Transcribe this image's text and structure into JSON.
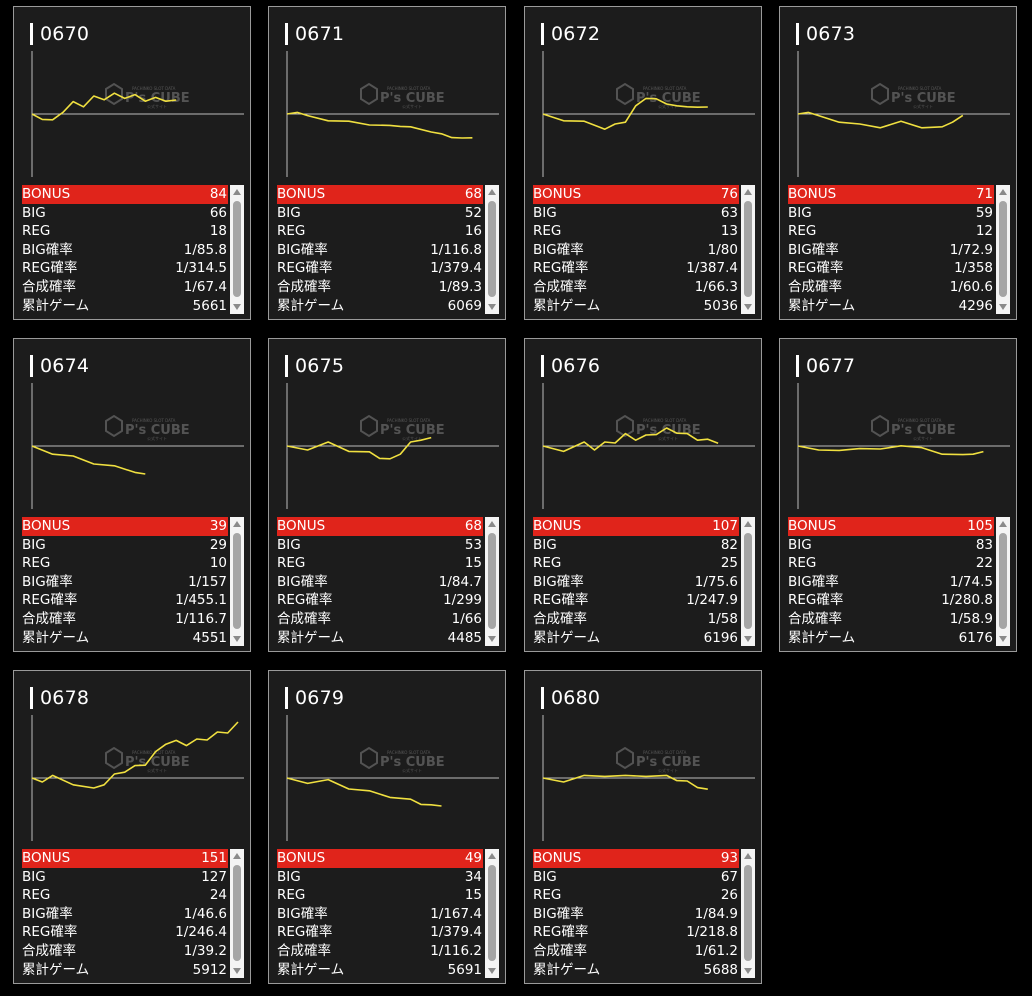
{
  "watermark": {
    "brand": "P's CUBE",
    "top": "PACHINKO SLOT DATA",
    "bottom": "公式サイト"
  },
  "colors": {
    "bonus_bg": "#e0241b",
    "line": "#f0e040",
    "card_bg": "#1c1c1c"
  },
  "labels": {
    "bonus": "BONUS",
    "big": "BIG",
    "reg": "REG",
    "big_rate": "BIG確率",
    "reg_rate": "REG確率",
    "total_rate": "合成確率",
    "games": "累計ゲーム"
  },
  "machines": [
    {
      "id": "0670",
      "bonus": "84",
      "big": "66",
      "reg": "18",
      "big_rate": "1/85.8",
      "reg_rate": "1/314.5",
      "total_rate": "1/67.4",
      "games": "5661",
      "graph": [
        [
          0,
          0
        ],
        [
          0.05,
          -0.03
        ],
        [
          0.1,
          -0.05
        ],
        [
          0.15,
          0.02
        ],
        [
          0.2,
          0.08
        ],
        [
          0.25,
          0.06
        ],
        [
          0.3,
          0.12
        ],
        [
          0.35,
          0.11
        ],
        [
          0.4,
          0.14
        ],
        [
          0.45,
          0.12
        ],
        [
          0.5,
          0.13
        ],
        [
          0.55,
          0.1
        ],
        [
          0.6,
          0.11
        ],
        [
          0.65,
          0.1
        ],
        [
          0.7,
          0.1
        ]
      ]
    },
    {
      "id": "0671",
      "bonus": "68",
      "big": "52",
      "reg": "16",
      "big_rate": "1/116.8",
      "reg_rate": "1/379.4",
      "total_rate": "1/89.3",
      "games": "6069",
      "graph": [
        [
          0,
          0
        ],
        [
          0.05,
          0.02
        ],
        [
          0.1,
          -0.02
        ],
        [
          0.2,
          -0.04
        ],
        [
          0.3,
          -0.06
        ],
        [
          0.4,
          -0.07
        ],
        [
          0.5,
          -0.09
        ],
        [
          0.55,
          -0.08
        ],
        [
          0.6,
          -0.1
        ],
        [
          0.7,
          -0.12
        ],
        [
          0.75,
          -0.15
        ],
        [
          0.8,
          -0.16
        ],
        [
          0.85,
          -0.18
        ],
        [
          0.9,
          -0.17
        ]
      ]
    },
    {
      "id": "0672",
      "bonus": "76",
      "big": "63",
      "reg": "13",
      "big_rate": "1/80",
      "reg_rate": "1/387.4",
      "total_rate": "1/66.3",
      "games": "5036",
      "graph": [
        [
          0,
          0
        ],
        [
          0.1,
          -0.04
        ],
        [
          0.2,
          -0.06
        ],
        [
          0.3,
          -0.1
        ],
        [
          0.35,
          -0.08
        ],
        [
          0.4,
          -0.05
        ],
        [
          0.45,
          0.05
        ],
        [
          0.5,
          0.12
        ],
        [
          0.55,
          0.1
        ],
        [
          0.6,
          0.08
        ],
        [
          0.65,
          0.05
        ],
        [
          0.7,
          0.06
        ],
        [
          0.75,
          0.04
        ],
        [
          0.8,
          0.05
        ]
      ]
    },
    {
      "id": "0673",
      "bonus": "71",
      "big": "59",
      "reg": "12",
      "big_rate": "1/72.9",
      "reg_rate": "1/358",
      "total_rate": "1/60.6",
      "games": "4296",
      "graph": [
        [
          0,
          0
        ],
        [
          0.05,
          0.02
        ],
        [
          0.1,
          -0.02
        ],
        [
          0.2,
          -0.05
        ],
        [
          0.3,
          -0.08
        ],
        [
          0.4,
          -0.09
        ],
        [
          0.5,
          -0.06
        ],
        [
          0.6,
          -0.09
        ],
        [
          0.7,
          -0.1
        ],
        [
          0.75,
          -0.05
        ],
        [
          0.8,
          -0.01
        ]
      ]
    },
    {
      "id": "0674",
      "bonus": "39",
      "big": "29",
      "reg": "10",
      "big_rate": "1/157",
      "reg_rate": "1/455.1",
      "total_rate": "1/116.7",
      "games": "4551",
      "graph": [
        [
          0,
          0
        ],
        [
          0.1,
          -0.05
        ],
        [
          0.2,
          -0.08
        ],
        [
          0.3,
          -0.12
        ],
        [
          0.4,
          -0.15
        ],
        [
          0.5,
          -0.18
        ],
        [
          0.55,
          -0.2
        ]
      ]
    },
    {
      "id": "0675",
      "bonus": "68",
      "big": "53",
      "reg": "15",
      "big_rate": "1/84.7",
      "reg_rate": "1/299",
      "total_rate": "1/66",
      "games": "4485",
      "graph": [
        [
          0,
          0
        ],
        [
          0.1,
          -0.02
        ],
        [
          0.2,
          0.02
        ],
        [
          0.3,
          -0.03
        ],
        [
          0.4,
          -0.05
        ],
        [
          0.45,
          -0.08
        ],
        [
          0.5,
          -0.1
        ],
        [
          0.55,
          -0.05
        ],
        [
          0.6,
          0.02
        ],
        [
          0.65,
          0.05
        ],
        [
          0.7,
          0.06
        ]
      ]
    },
    {
      "id": "0676",
      "bonus": "107",
      "big": "82",
      "reg": "25",
      "big_rate": "1/75.6",
      "reg_rate": "1/247.9",
      "total_rate": "1/58",
      "games": "6196",
      "graph": [
        [
          0,
          0
        ],
        [
          0.1,
          -0.03
        ],
        [
          0.2,
          0.02
        ],
        [
          0.25,
          -0.02
        ],
        [
          0.3,
          0.02
        ],
        [
          0.35,
          0.03
        ],
        [
          0.4,
          0.08
        ],
        [
          0.45,
          0.05
        ],
        [
          0.5,
          0.07
        ],
        [
          0.55,
          0.09
        ],
        [
          0.6,
          0.12
        ],
        [
          0.65,
          0.1
        ],
        [
          0.7,
          0.08
        ],
        [
          0.75,
          0.05
        ],
        [
          0.8,
          0.04
        ],
        [
          0.85,
          0.02
        ]
      ]
    },
    {
      "id": "0677",
      "bonus": "105",
      "big": "83",
      "reg": "22",
      "big_rate": "1/74.5",
      "reg_rate": "1/280.8",
      "total_rate": "1/58.9",
      "games": "6176",
      "graph": [
        [
          0,
          0
        ],
        [
          0.1,
          -0.02
        ],
        [
          0.2,
          -0.04
        ],
        [
          0.3,
          -0.01
        ],
        [
          0.4,
          -0.03
        ],
        [
          0.5,
          0.01
        ],
        [
          0.6,
          -0.02
        ],
        [
          0.7,
          -0.05
        ],
        [
          0.8,
          -0.07
        ],
        [
          0.85,
          -0.05
        ],
        [
          0.9,
          -0.04
        ]
      ]
    },
    {
      "id": "0678",
      "bonus": "151",
      "big": "127",
      "reg": "24",
      "big_rate": "1/46.6",
      "reg_rate": "1/246.4",
      "total_rate": "1/39.2",
      "games": "5912",
      "graph": [
        [
          0,
          0
        ],
        [
          0.05,
          -0.02
        ],
        [
          0.1,
          0.01
        ],
        [
          0.2,
          -0.04
        ],
        [
          0.3,
          -0.08
        ],
        [
          0.35,
          -0.04
        ],
        [
          0.4,
          0.02
        ],
        [
          0.45,
          0.05
        ],
        [
          0.5,
          0.08
        ],
        [
          0.55,
          0.1
        ],
        [
          0.6,
          0.18
        ],
        [
          0.65,
          0.25
        ],
        [
          0.7,
          0.26
        ],
        [
          0.75,
          0.24
        ],
        [
          0.8,
          0.27
        ],
        [
          0.85,
          0.28
        ],
        [
          0.9,
          0.32
        ],
        [
          0.95,
          0.33
        ],
        [
          1.0,
          0.4
        ]
      ]
    },
    {
      "id": "0679",
      "bonus": "49",
      "big": "34",
      "reg": "15",
      "big_rate": "1/167.4",
      "reg_rate": "1/379.4",
      "total_rate": "1/116.2",
      "games": "5691",
      "graph": [
        [
          0,
          0
        ],
        [
          0.1,
          -0.03
        ],
        [
          0.2,
          -0.02
        ],
        [
          0.3,
          -0.07
        ],
        [
          0.4,
          -0.1
        ],
        [
          0.5,
          -0.13
        ],
        [
          0.6,
          -0.16
        ],
        [
          0.65,
          -0.18
        ],
        [
          0.7,
          -0.2
        ],
        [
          0.75,
          -0.2
        ]
      ]
    },
    {
      "id": "0680",
      "bonus": "93",
      "big": "67",
      "reg": "26",
      "big_rate": "1/84.9",
      "reg_rate": "1/218.8",
      "total_rate": "1/61.2",
      "games": "5688",
      "graph": [
        [
          0,
          0
        ],
        [
          0.1,
          -0.02
        ],
        [
          0.2,
          0.01
        ],
        [
          0.3,
          0.02
        ],
        [
          0.4,
          0.01
        ],
        [
          0.5,
          0.02
        ],
        [
          0.6,
          0.01
        ],
        [
          0.65,
          -0.01
        ],
        [
          0.7,
          -0.03
        ],
        [
          0.75,
          -0.06
        ],
        [
          0.8,
          -0.08
        ]
      ]
    }
  ]
}
